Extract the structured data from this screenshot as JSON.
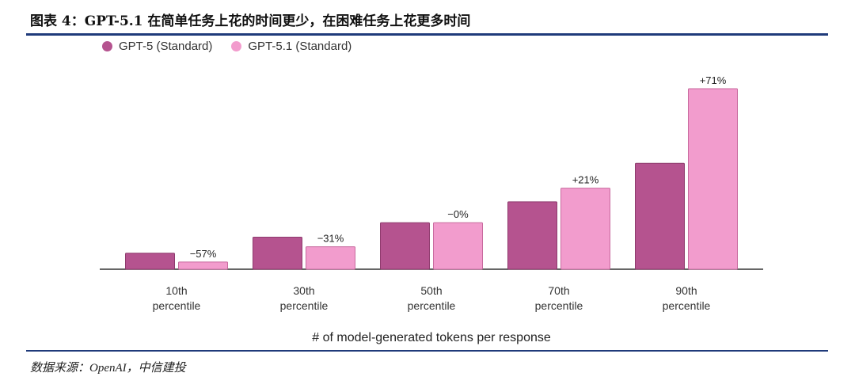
{
  "figure": {
    "title": "图表 4：GPT-5.1 在简单任务上花的时间更少，在困难任务上花更多时间",
    "source": "数据来源：OpenAI，中信建投"
  },
  "chart_data": {
    "type": "bar",
    "xlabel": "# of model-generated tokens per response",
    "ylabel": "",
    "categories": [
      [
        "10th",
        "percentile"
      ],
      [
        "30th",
        "percentile"
      ],
      [
        "50th",
        "percentile"
      ],
      [
        "70th",
        "percentile"
      ],
      [
        "90th",
        "percentile"
      ]
    ],
    "series": [
      {
        "name": "GPT-5 (Standard)",
        "color": "#b5538f",
        "values": [
          20,
          40,
          58,
          84,
          132
        ]
      },
      {
        "name": "GPT-5.1 (Standard)",
        "color": "#f29ccd",
        "values": [
          9,
          28,
          58,
          101,
          225
        ]
      }
    ],
    "data_labels": [
      "−57%",
      "−31%",
      "−0%",
      "+21%",
      "+71%"
    ],
    "ylim": [
      0,
      240
    ],
    "legend": "top-left",
    "grid": false
  }
}
